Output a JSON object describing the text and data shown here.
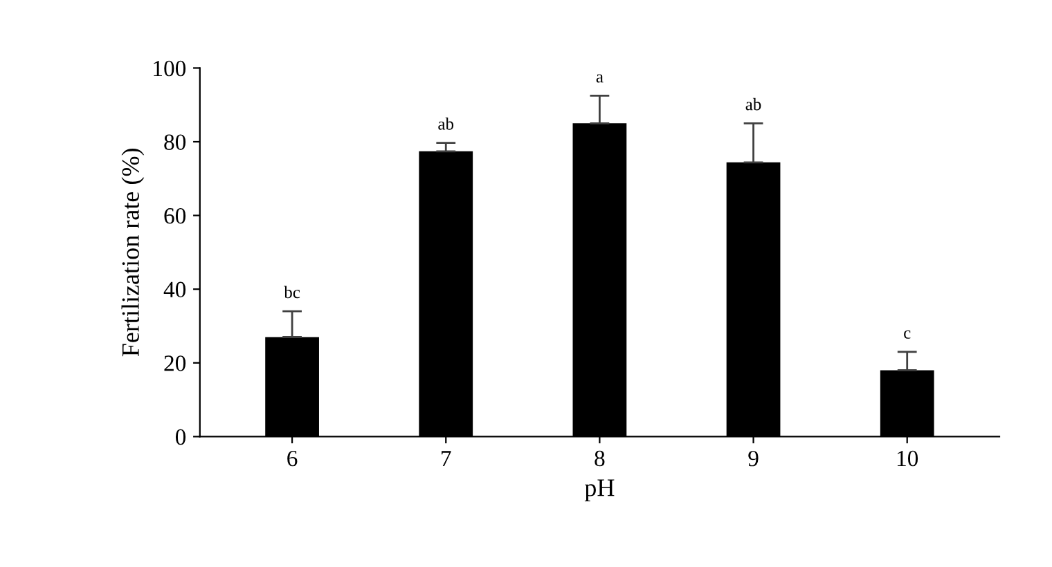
{
  "chart_data": {
    "type": "bar",
    "xlabel": "pH",
    "ylabel": "Fertilization rate (%)",
    "categories": [
      "6",
      "7",
      "8",
      "9",
      "10"
    ],
    "values": [
      27,
      77.4,
      85,
      74.4,
      18
    ],
    "color": "#000000",
    "errors": [
      [
        27,
        34
      ],
      [
        77.4,
        79.7
      ],
      [
        85,
        92.5
      ],
      [
        74.4,
        85
      ],
      [
        18,
        23
      ]
    ],
    "annotations": [
      {
        "text": "bc",
        "x": "6",
        "y": 34
      },
      {
        "text": "ab",
        "x": "7",
        "y": 79.7
      },
      {
        "text": "a",
        "x": "8",
        "y": 92.5
      },
      {
        "text": "ab",
        "x": "9",
        "y": 85
      },
      {
        "text": "c",
        "x": "10",
        "y": 23
      }
    ],
    "ylim": [
      0,
      100
    ],
    "yticks": [
      0,
      20,
      40,
      60,
      80,
      100
    ],
    "grid": false,
    "legend": false
  }
}
